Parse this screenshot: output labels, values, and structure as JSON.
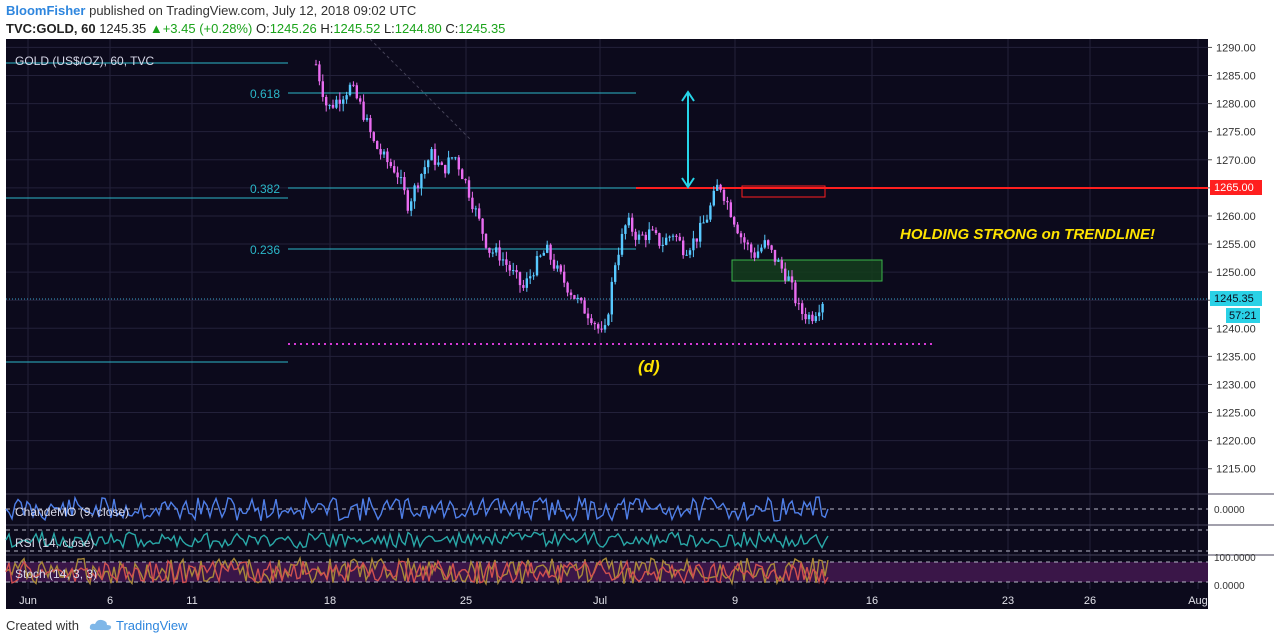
{
  "header": {
    "author": "BloomFisher",
    "published": "published on TradingView.com, July 12, 2018 09:02 UTC",
    "symbol": "TVC:GOLD, 60",
    "price": "1245.35",
    "change": "+3.45 (+0.28%)",
    "open_label": "O:",
    "open": "1245.26",
    "high_label": "H:",
    "high": "1245.52",
    "low_label": "L:",
    "low": "1244.80",
    "close_label": "C:",
    "close": "1245.35"
  },
  "footer": {
    "created_with": "Created with",
    "brand": "TradingView"
  },
  "colors": {
    "background": "#0c0a1c",
    "grid": "#23213a",
    "candle_up": "#58c9ff",
    "candle_down": "#e96cf0",
    "fib": "#2bb7c9",
    "resistance": "#ff1f1f",
    "support_dotted": "#d63ad6",
    "annotation": "#ffe400",
    "arrow": "#26d5e8",
    "green_zone": "#3ab54a",
    "cmo_line": "#4f7fe8",
    "rsi_line": "#2aa8a8",
    "stoch_k": "#a98a3a",
    "stoch_d": "#d05050",
    "stoch_band": "#3a1648"
  },
  "chart_data": [
    {
      "type": "candlestick",
      "title": "GOLD (US$/OZ), 60, TVC",
      "x_ticks": [
        "Jun",
        "6",
        "11",
        "18",
        "25",
        "Jul",
        "9",
        "16",
        "23",
        "26",
        "Aug"
      ],
      "y_ticks": [
        1215,
        1220,
        1225,
        1230,
        1235,
        1240,
        1245,
        1250,
        1255,
        1260,
        1265,
        1270,
        1275,
        1280,
        1285,
        1290
      ],
      "ylim": [
        1210.5,
        1291.5
      ],
      "series": [
        {
          "name": "price path (approx.)",
          "values": [
            1287,
            1279,
            1281,
            1283,
            1279,
            1273,
            1270,
            1268,
            1262,
            1267,
            1271,
            1268,
            1271,
            1266,
            1260,
            1254,
            1253,
            1250,
            1247,
            1251,
            1254,
            1250,
            1247,
            1244,
            1242,
            1238,
            1252,
            1259,
            1256,
            1257,
            1255,
            1257,
            1254,
            1256,
            1260,
            1266,
            1261,
            1256,
            1253,
            1255,
            1252,
            1249,
            1243,
            1242,
            1245
          ]
        }
      ],
      "fibonacci_levels": [
        "0.618",
        "0.382",
        "0.236"
      ],
      "resistance_level": 1265.0,
      "last_price_label": "1245.35",
      "countdown_label": "57:21",
      "annotations": [
        "HOLDING STRONG on TRENDLINE!",
        "(d)"
      ]
    },
    {
      "type": "line",
      "title": "ChandeMO (9, close)",
      "y_tick": "0.0000"
    },
    {
      "type": "line",
      "title": "RSI (14, close)"
    },
    {
      "type": "line",
      "title": "Stoch (14, 3, 3)",
      "y_ticks": [
        "100.0000",
        "0.0000"
      ]
    }
  ]
}
